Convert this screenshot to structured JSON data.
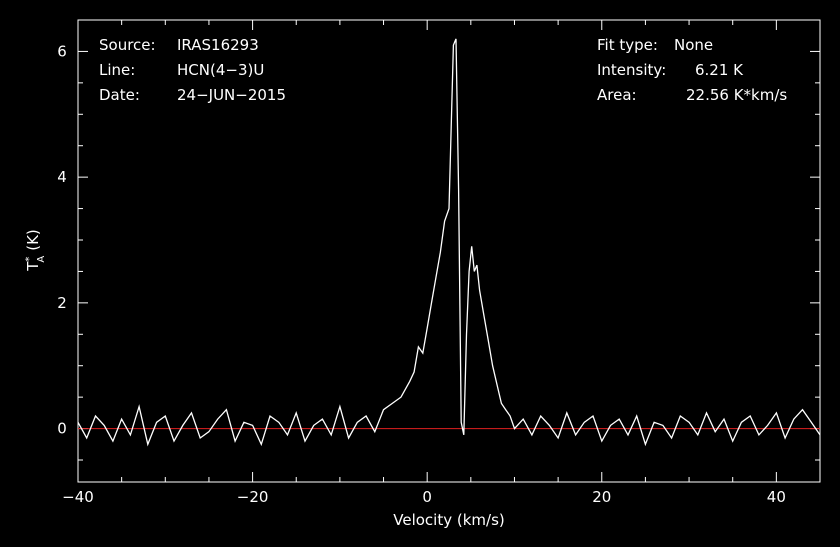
{
  "header": {
    "source_label": "Source:",
    "source_value": "IRAS16293",
    "line_label": "Line:",
    "line_value": "HCN(4−3)U",
    "date_label": "Date:",
    "date_value": "24−JUN−2015",
    "fit_label": "Fit type:",
    "fit_value": "None",
    "intensity_label": "Intensity:",
    "intensity_value": "6.21 K",
    "area_label": "Area:",
    "area_value": "22.56 K*km/s"
  },
  "chart_data": {
    "type": "line",
    "xlabel": "Velocity (km/s)",
    "ylabel": "T*A (K)",
    "ylabel_main": "T",
    "ylabel_sup": "*",
    "ylabel_sub": "A",
    "ylabel_unit": "(K)",
    "xlim": [
      -40,
      45
    ],
    "ylim": [
      -0.85,
      6.5
    ],
    "xticks": [
      -40,
      -20,
      0,
      20,
      40
    ],
    "xtick_labels": [
      "−40",
      "−20",
      "0",
      "20",
      "40"
    ],
    "yticks": [
      0,
      2,
      4,
      6
    ],
    "ytick_labels": [
      "0",
      "2",
      "4",
      "6"
    ],
    "grid": false,
    "baseline": {
      "y": 0,
      "color": "#e02020"
    },
    "line_color": "#ffffff",
    "series": [
      {
        "x": [
          -40,
          -39,
          -38,
          -37,
          -36,
          -35,
          -34,
          -33,
          -32,
          -31,
          -30,
          -29,
          -28,
          -27,
          -26,
          -25,
          -24,
          -23,
          -22,
          -21,
          -20,
          -19,
          -18,
          -17,
          -16,
          -15,
          -14,
          -13,
          -12,
          -11,
          -10,
          -9,
          -8,
          -7,
          -6,
          -5,
          -4,
          -3,
          -2,
          -1.5,
          -1,
          -0.5,
          0,
          0.5,
          1,
          1.5,
          2,
          2.5,
          3,
          3.3,
          3.6,
          3.9,
          4.2,
          4.5,
          4.8,
          5.1,
          5.4,
          5.7,
          6,
          6.5,
          7,
          7.5,
          8,
          8.5,
          9,
          9.5,
          10,
          11,
          12,
          13,
          14,
          15,
          16,
          17,
          18,
          19,
          20,
          21,
          22,
          23,
          24,
          25,
          26,
          27,
          28,
          29,
          30,
          31,
          32,
          33,
          34,
          35,
          36,
          37,
          38,
          39,
          40,
          41,
          42,
          43,
          44,
          45
        ],
        "y": [
          0.1,
          -0.15,
          0.2,
          0.05,
          -0.2,
          0.15,
          -0.1,
          0.35,
          -0.25,
          0.1,
          0.2,
          -0.2,
          0.05,
          0.25,
          -0.15,
          -0.05,
          0.15,
          0.3,
          -0.2,
          0.1,
          0.05,
          -0.25,
          0.2,
          0.1,
          -0.1,
          0.25,
          -0.2,
          0.05,
          0.15,
          -0.1,
          0.35,
          -0.15,
          0.1,
          0.2,
          -0.05,
          0.3,
          0.4,
          0.5,
          0.75,
          0.9,
          1.3,
          1.2,
          1.6,
          2.0,
          2.4,
          2.8,
          3.3,
          3.5,
          6.1,
          6.2,
          3.8,
          0.1,
          -0.1,
          1.5,
          2.5,
          2.9,
          2.5,
          2.6,
          2.2,
          1.8,
          1.4,
          1.0,
          0.7,
          0.4,
          0.3,
          0.2,
          0.0,
          0.15,
          -0.1,
          0.2,
          0.05,
          -0.15,
          0.25,
          -0.1,
          0.1,
          0.2,
          -0.2,
          0.05,
          0.15,
          -0.1,
          0.2,
          -0.25,
          0.1,
          0.05,
          -0.15,
          0.2,
          0.1,
          -0.1,
          0.25,
          -0.05,
          0.15,
          -0.2,
          0.1,
          0.2,
          -0.1,
          0.05,
          0.25,
          -0.15,
          0.15,
          0.3,
          0.1,
          -0.1
        ]
      }
    ]
  }
}
